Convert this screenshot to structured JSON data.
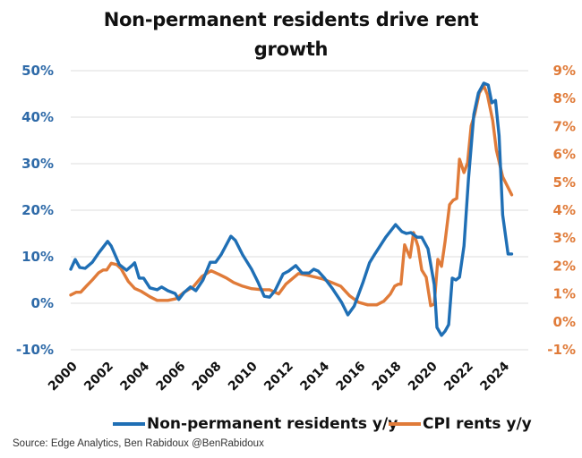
{
  "chart_data": {
    "type": "line",
    "title": "Non-permanent residents drive rent growth",
    "title_lines": [
      "Non-permanent residents drive rent",
      "growth"
    ],
    "xlabel": "",
    "ylabel_left": "",
    "ylabel_right": "",
    "x_ticks": [
      "2000",
      "2002",
      "2004",
      "2006",
      "2008",
      "2010",
      "2012",
      "2014",
      "2016",
      "2018",
      "2020",
      "2022",
      "2024"
    ],
    "x_range": [
      2000,
      2024.6
    ],
    "y_left": {
      "ticks": [
        "50%",
        "40%",
        "30%",
        "20%",
        "10%",
        "0%",
        "-10%"
      ],
      "tick_values": [
        50,
        40,
        30,
        20,
        10,
        0,
        -10
      ],
      "range": [
        -10,
        50
      ],
      "color": "#2e6aa8"
    },
    "y_right": {
      "ticks": [
        "9%",
        "8%",
        "7%",
        "6%",
        "5%",
        "4%",
        "3%",
        "2%",
        "1%",
        "0%",
        "-1%"
      ],
      "tick_values": [
        9,
        8,
        7,
        6,
        5,
        4,
        3,
        2,
        1,
        0,
        -1
      ],
      "range": [
        -1,
        9
      ],
      "color": "#e07b39"
    },
    "grid": true,
    "legend_position": "bottom",
    "series": [
      {
        "name": "Non-permanent residents y/y",
        "axis": "left",
        "color": "#1f6fb5",
        "x": [
          2000.0,
          2000.25,
          2000.5,
          2000.8,
          2001.2,
          2001.55,
          2002.05,
          2002.25,
          2002.7,
          2003.1,
          2003.4,
          2003.55,
          2003.8,
          2004.05,
          2004.4,
          2004.8,
          2005.05,
          2005.4,
          2005.8,
          2006.0,
          2006.3,
          2006.65,
          2006.95,
          2007.35,
          2007.75,
          2008.05,
          2008.35,
          2008.9,
          2009.15,
          2009.55,
          2010.05,
          2010.4,
          2010.75,
          2011.05,
          2011.35,
          2011.8,
          2012.1,
          2012.5,
          2012.85,
          2013.25,
          2013.5,
          2013.75,
          2014.1,
          2014.55,
          2015.05,
          2015.4,
          2015.75,
          2016.25,
          2016.6,
          2016.9,
          2017.5,
          2018.05,
          2018.4,
          2018.65,
          2018.9,
          2019.25,
          2019.5,
          2019.85,
          2020.2,
          2020.35,
          2020.6,
          2020.8,
          2021.0,
          2021.2,
          2021.4,
          2021.6,
          2021.85,
          2022.1,
          2022.4,
          2022.65,
          2022.95,
          2023.2,
          2023.4,
          2023.6,
          2023.8,
          2024.0,
          2024.3,
          2024.5
        ],
        "values": [
          7.3,
          9.4,
          7.7,
          7.5,
          8.8,
          10.8,
          13.3,
          12.3,
          8.3,
          7.1,
          8.1,
          8.7,
          5.4,
          5.4,
          3.3,
          2.9,
          3.5,
          2.7,
          2.1,
          0.8,
          2.3,
          3.5,
          2.7,
          5.0,
          8.8,
          8.8,
          10.4,
          14.4,
          13.5,
          10.4,
          7.3,
          4.6,
          1.5,
          1.3,
          2.7,
          6.3,
          6.9,
          8.1,
          6.5,
          6.5,
          7.3,
          6.9,
          5.4,
          3.1,
          0.2,
          -2.5,
          -0.6,
          4.6,
          8.7,
          10.6,
          14.2,
          16.9,
          15.4,
          15.0,
          15.2,
          14.2,
          14.2,
          11.7,
          4.0,
          -5.2,
          -6.9,
          -6.0,
          -4.6,
          5.4,
          5.0,
          5.6,
          12.3,
          26.7,
          40.6,
          45.2,
          47.3,
          46.9,
          43.1,
          43.6,
          36.0,
          19.0,
          10.6,
          10.6
        ]
      },
      {
        "name": "CPI rents y/y",
        "axis": "right",
        "color": "#e07b39",
        "x": [
          2000.0,
          2000.3,
          2000.55,
          2000.9,
          2001.2,
          2001.55,
          2001.8,
          2002.0,
          2002.25,
          2002.55,
          2002.8,
          2003.2,
          2003.55,
          2003.9,
          2004.4,
          2004.8,
          2005.4,
          2005.85,
          2006.3,
          2006.8,
          2007.3,
          2007.8,
          2008.25,
          2008.65,
          2009.05,
          2009.55,
          2010.05,
          2010.65,
          2011.05,
          2011.55,
          2011.95,
          2012.3,
          2012.65,
          2013.15,
          2013.6,
          2014.0,
          2014.5,
          2015.0,
          2015.5,
          2016.0,
          2016.5,
          2017.0,
          2017.4,
          2017.75,
          2018.0,
          2018.2,
          2018.35,
          2018.55,
          2018.85,
          2019.05,
          2019.3,
          2019.5,
          2019.75,
          2020.0,
          2020.2,
          2020.4,
          2020.6,
          2020.8,
          2021.05,
          2021.25,
          2021.45,
          2021.6,
          2021.85,
          2022.05,
          2022.25,
          2022.45,
          2022.7,
          2022.95,
          2023.15,
          2023.45,
          2023.65,
          2024.0,
          2024.5
        ],
        "values": [
          0.96,
          1.06,
          1.06,
          1.3,
          1.5,
          1.76,
          1.86,
          1.86,
          2.1,
          2.05,
          1.9,
          1.45,
          1.2,
          1.1,
          0.9,
          0.77,
          0.77,
          0.83,
          1.06,
          1.25,
          1.63,
          1.83,
          1.7,
          1.57,
          1.41,
          1.28,
          1.19,
          1.15,
          1.15,
          1.0,
          1.35,
          1.54,
          1.73,
          1.67,
          1.6,
          1.54,
          1.41,
          1.28,
          0.93,
          0.7,
          0.61,
          0.61,
          0.74,
          0.99,
          1.28,
          1.35,
          1.35,
          2.76,
          2.31,
          3.2,
          2.7,
          1.86,
          1.6,
          0.58,
          0.64,
          2.24,
          1.99,
          2.88,
          4.2,
          4.36,
          4.42,
          5.83,
          5.35,
          5.7,
          7.02,
          7.44,
          8.2,
          8.46,
          8.14,
          7.21,
          6.15,
          5.2,
          4.55
        ]
      }
    ],
    "legend": [
      {
        "label": "Non-permanent residents y/y",
        "color": "#1f6fb5"
      },
      {
        "label": "CPI rents y/y",
        "color": "#e07b39"
      }
    ],
    "source": "Source: Edge Analytics,   Ben Rabidoux @BenRabidoux"
  }
}
